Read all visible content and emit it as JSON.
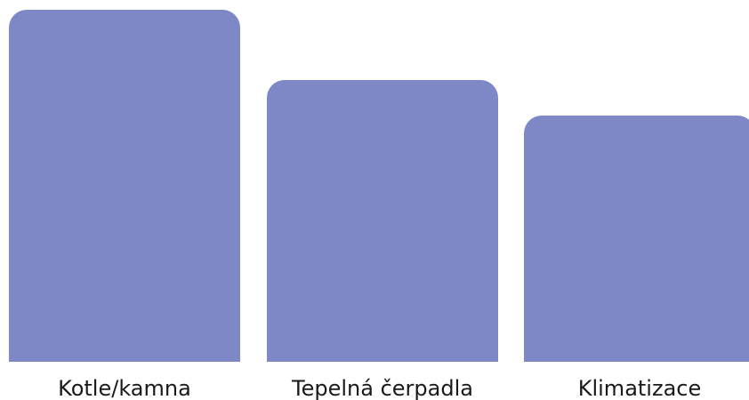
{
  "categories": [
    {
      "label": "Kotle/kamna",
      "level": 1.0
    },
    {
      "label": "Tepelná čerpadla",
      "level": 0.8
    },
    {
      "label": "Klimatizace",
      "level": 0.7
    }
  ],
  "colors": {
    "bar": "#7f88c6",
    "text": "#1a1a1a",
    "background": "#ffffff"
  }
}
